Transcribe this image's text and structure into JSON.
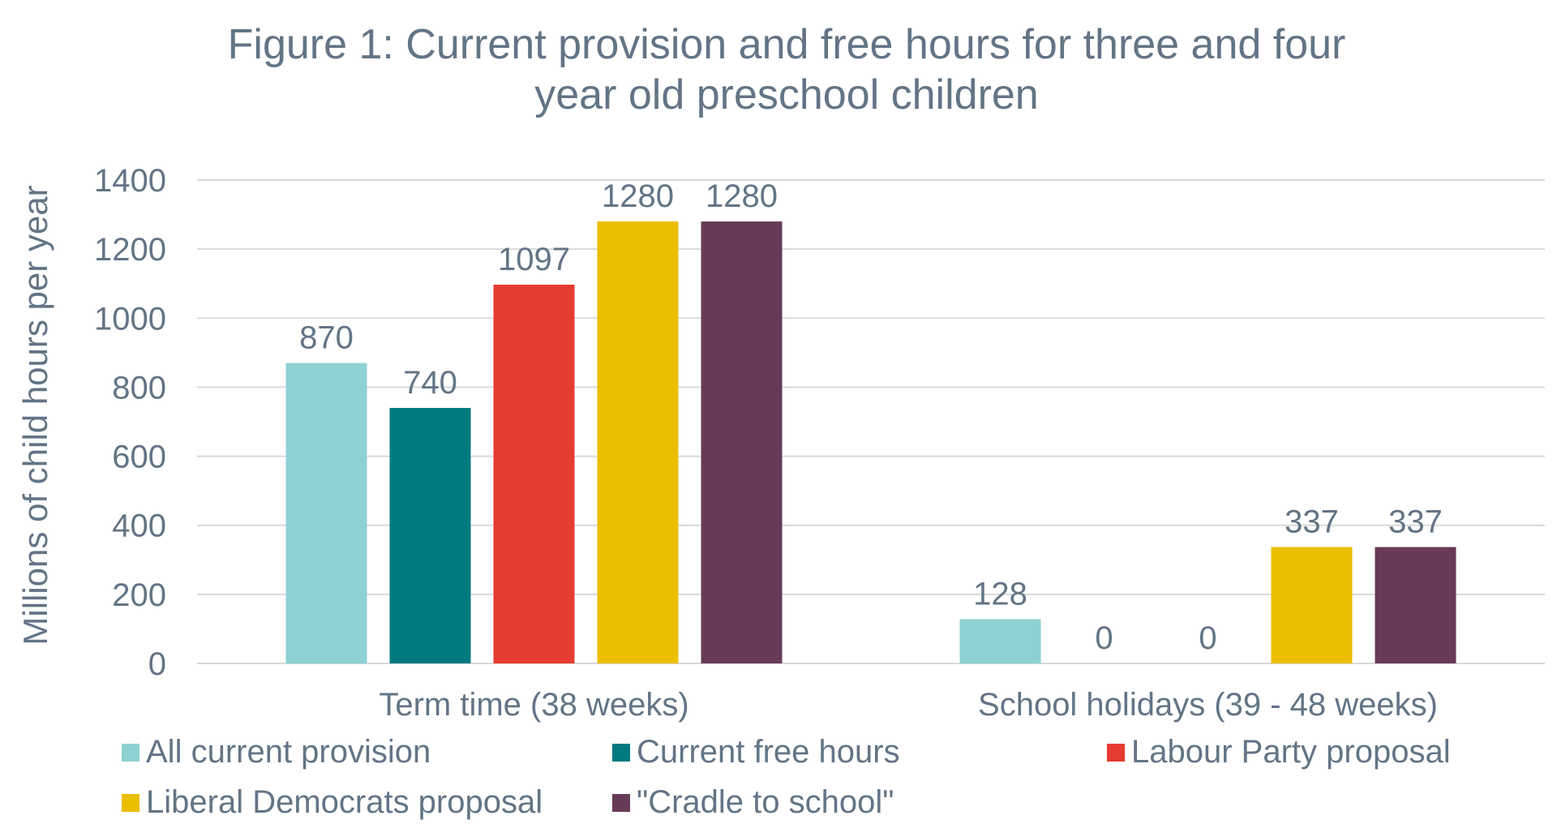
{
  "chart_data": {
    "type": "bar",
    "title": "Figure 1: Current provision and free hours for three and four year old preschool children",
    "title_lines": [
      "Figure 1: Current provision and free hours for three and four",
      "year old preschool children"
    ],
    "ylabel": "Millions of child hours per year",
    "xlabel": "",
    "ylim": [
      0,
      1400
    ],
    "yticks": [
      0,
      200,
      400,
      600,
      800,
      1000,
      1200,
      1400
    ],
    "grid": true,
    "legend_position": "bottom",
    "categories": [
      "Term time (38 weeks)",
      "School holidays (39 - 48 weeks)"
    ],
    "series": [
      {
        "name": "All current provision",
        "color": "#8ED1D2",
        "values": [
          870,
          128
        ]
      },
      {
        "name": "Current free hours",
        "color": "#007A80",
        "values": [
          740,
          0
        ]
      },
      {
        "name": "Labour Party proposal",
        "color": "#E63B30",
        "values": [
          1097,
          0
        ]
      },
      {
        "name": "Liberal Democrats proposal",
        "color": "#EBBE00",
        "values": [
          1280,
          337
        ]
      },
      {
        "name": "\"Cradle to school\"",
        "color": "#673A58",
        "values": [
          1280,
          337
        ]
      }
    ]
  }
}
